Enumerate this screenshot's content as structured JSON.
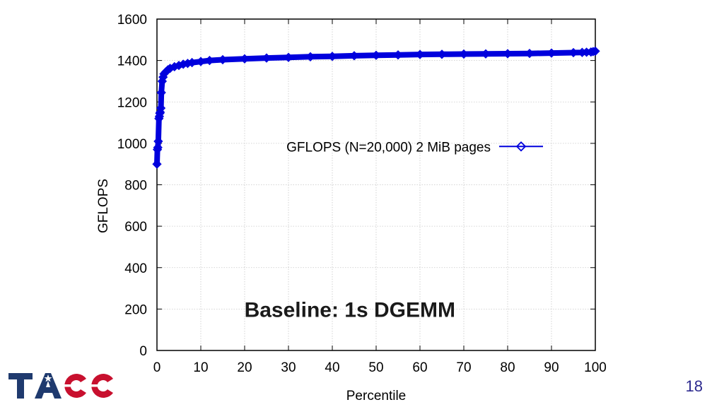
{
  "chart_data": {
    "type": "line",
    "xlabel": "Percentile",
    "ylabel": "GFLOPS",
    "xlim": [
      0,
      100
    ],
    "ylim": [
      0,
      1600
    ],
    "xticks": [
      0,
      10,
      20,
      30,
      40,
      50,
      60,
      70,
      80,
      90,
      100
    ],
    "yticks": [
      0,
      200,
      400,
      600,
      800,
      1000,
      1200,
      1400,
      1600
    ],
    "grid": true,
    "legend_position": "center-right",
    "annotation": "Baseline: 1s DGEMM",
    "series": [
      {
        "name": "GFLOPS (N=20,000) 2 MiB pages",
        "color": "#0000dd",
        "marker": "diamond",
        "x": [
          0,
          0.1,
          0.2,
          0.3,
          0.45,
          0.55,
          0.65,
          0.75,
          0.9,
          1.0,
          1.2,
          1.4,
          1.6,
          2.0,
          2.5,
          3,
          4,
          5,
          6,
          7,
          8,
          10,
          12,
          15,
          20,
          25,
          30,
          35,
          40,
          45,
          50,
          55,
          60,
          65,
          70,
          75,
          80,
          85,
          90,
          95,
          97,
          98,
          99,
          99.5,
          100
        ],
        "y": [
          900,
          970,
          980,
          1010,
          1120,
          1130,
          1145,
          1150,
          1170,
          1245,
          1300,
          1320,
          1335,
          1345,
          1355,
          1362,
          1370,
          1376,
          1382,
          1386,
          1390,
          1395,
          1400,
          1404,
          1408,
          1412,
          1415,
          1418,
          1420,
          1423,
          1425,
          1427,
          1429,
          1430,
          1431,
          1432,
          1433,
          1434,
          1436,
          1438,
          1439,
          1440,
          1441,
          1443,
          1445
        ]
      }
    ]
  },
  "slide_number": "18",
  "logo_text": "TACC",
  "colors": {
    "series": "#0000dd",
    "logo_blue": "#1f3a6e",
    "logo_red": "#c8102e",
    "slide_number": "#2d2a8f"
  }
}
